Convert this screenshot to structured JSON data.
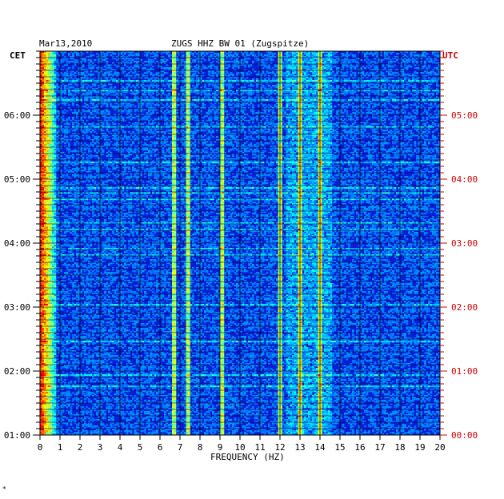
{
  "chart_data": {
    "type": "heatmap",
    "title": "ZUGS HHZ BW 01 (Zugspitze)",
    "date": "Mar13,2010",
    "xlabel": "FREQUENCY (HZ)",
    "xlim": [
      0,
      20
    ],
    "x_ticks": [
      "0",
      "1",
      "2",
      "3",
      "4",
      "5",
      "6",
      "7",
      "8",
      "9",
      "10",
      "11",
      "12",
      "13",
      "14",
      "15",
      "16",
      "17",
      "18",
      "19",
      "20"
    ],
    "left_axis": {
      "label": "CET",
      "ticks": [
        "06:00",
        "05:00",
        "04:00",
        "03:00",
        "02:00",
        "01:00"
      ],
      "color": "#000000"
    },
    "right_axis": {
      "label": "UTC",
      "ticks": [
        "05:00",
        "04:00",
        "03:00",
        "02:00",
        "01:00",
        "00:00"
      ],
      "color": "#cc0000"
    },
    "grid": true,
    "colormap": "jet",
    "background_color": "#0a1ed8",
    "prominent_frequency_lines_hz": [
      6.7,
      7.4,
      9.1,
      12.0,
      13.0,
      14.0
    ]
  },
  "footer_mark": "*"
}
